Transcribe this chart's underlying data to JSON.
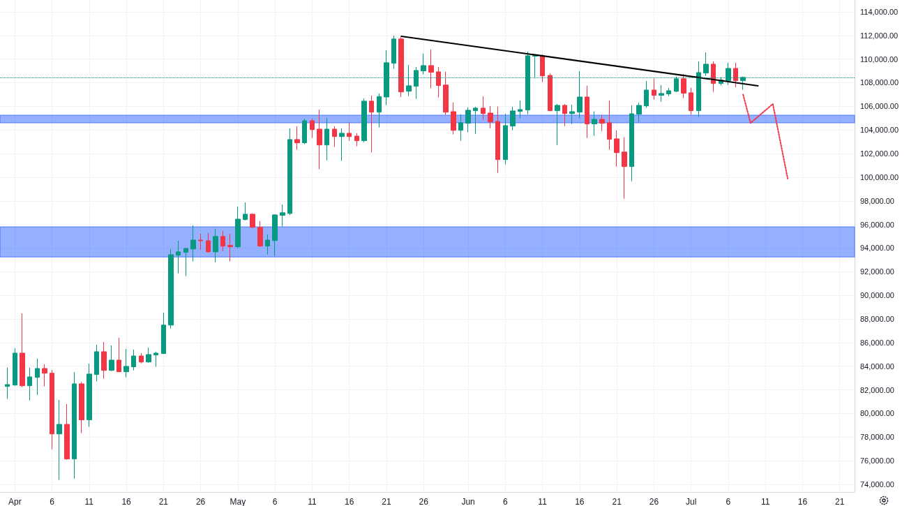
{
  "chart_data": {
    "type": "candlestick",
    "x": [
      "--03-31",
      "--04-01",
      "--04-02",
      "--04-03",
      "--04-04",
      "--04-05",
      "--04-06",
      "--04-07",
      "--04-08",
      "--04-09",
      "--04-10",
      "--04-11",
      "--04-12",
      "--04-13",
      "--04-14",
      "--04-15",
      "--04-16",
      "--04-17",
      "--04-18",
      "--04-19",
      "--04-20",
      "--04-21",
      "--04-22",
      "--04-23",
      "--04-24",
      "--04-25",
      "--04-26",
      "--04-27",
      "--04-28",
      "--04-29",
      "--04-30",
      "--05-01",
      "--05-02",
      "--05-03",
      "--05-04",
      "--05-05",
      "--05-06",
      "--05-07",
      "--05-08",
      "--05-09",
      "--05-10",
      "--05-11",
      "--05-12",
      "--05-13",
      "--05-14",
      "--05-15",
      "--05-16",
      "--05-17",
      "--05-18",
      "--05-19",
      "--05-20",
      "--05-21",
      "--05-22",
      "--05-23",
      "--05-24",
      "--05-25",
      "--05-26",
      "--05-27",
      "--05-28",
      "--05-29",
      "--05-30",
      "--05-31",
      "--06-01",
      "--06-02",
      "--06-03",
      "--06-04",
      "--06-05",
      "--06-06",
      "--06-07",
      "--06-08",
      "--06-09",
      "--06-10",
      "--06-11",
      "--06-12",
      "--06-13",
      "--06-14",
      "--06-15",
      "--06-16",
      "--06-17",
      "--06-18",
      "--06-19",
      "--06-20",
      "--06-21",
      "--06-22",
      "--06-23",
      "--06-24",
      "--06-25",
      "--06-26",
      "--06-27",
      "--06-28",
      "--06-29",
      "--06-30",
      "--07-01",
      "--07-02",
      "--07-03",
      "--07-04",
      "--07-05",
      "--07-06",
      "--07-07",
      "--07-08"
    ],
    "ohlc": [
      [
        82290,
        83890,
        81230,
        82450
      ],
      [
        82410,
        85520,
        82350,
        85110
      ],
      [
        85110,
        88480,
        82230,
        82350
      ],
      [
        82350,
        83870,
        81110,
        83100
      ],
      [
        83060,
        84640,
        81580,
        83810
      ],
      [
        83810,
        84170,
        82290,
        83410
      ],
      [
        83410,
        83690,
        76970,
        78270
      ],
      [
        78270,
        81150,
        74380,
        79080
      ],
      [
        79080,
        80800,
        76090,
        76150
      ],
      [
        76150,
        83510,
        74490,
        82510
      ],
      [
        82510,
        82670,
        78330,
        79460
      ],
      [
        79460,
        84220,
        78870,
        83340
      ],
      [
        83300,
        85820,
        82710,
        85230
      ],
      [
        85230,
        86050,
        82940,
        83650
      ],
      [
        83650,
        85760,
        83590,
        84520
      ],
      [
        84520,
        86410,
        83500,
        83530
      ],
      [
        83530,
        85460,
        83060,
        83990
      ],
      [
        83950,
        85410,
        83650,
        84870
      ],
      [
        84870,
        85110,
        84240,
        84360
      ],
      [
        84360,
        85580,
        84300,
        84990
      ],
      [
        84950,
        85230,
        83950,
        85110
      ],
      [
        85070,
        88540,
        85050,
        87480
      ],
      [
        87480,
        93910,
        87200,
        93440
      ],
      [
        93400,
        94620,
        91860,
        93680
      ],
      [
        93640,
        94000,
        91630,
        93970
      ],
      [
        93930,
        95920,
        92870,
        94680
      ],
      [
        94680,
        95210,
        93870,
        94620
      ],
      [
        94620,
        95270,
        93640,
        93680
      ],
      [
        93680,
        95630,
        92790,
        94980
      ],
      [
        94980,
        95450,
        93740,
        94170
      ],
      [
        94230,
        95210,
        92870,
        94110
      ],
      [
        94110,
        97520,
        94000,
        96450
      ],
      [
        96410,
        97870,
        96350,
        96870
      ],
      [
        96870,
        96950,
        95700,
        95760
      ],
      [
        95760,
        96280,
        94110,
        94170
      ],
      [
        94170,
        95150,
        93460,
        94680
      ],
      [
        94640,
        96870,
        93340,
        96810
      ],
      [
        96770,
        97690,
        95820,
        96990
      ],
      [
        96930,
        104130,
        96800,
        103190
      ],
      [
        103190,
        104310,
        102320,
        102910
      ],
      [
        102910,
        104960,
        102790,
        104780
      ],
      [
        104780,
        104960,
        103320,
        104030
      ],
      [
        104070,
        105730,
        100670,
        102730
      ],
      [
        102730,
        105020,
        101430,
        104070
      ],
      [
        104070,
        104310,
        102560,
        103440
      ],
      [
        103440,
        104130,
        101380,
        103720
      ],
      [
        103720,
        104610,
        103090,
        103440
      ],
      [
        103480,
        103720,
        102620,
        103090
      ],
      [
        103090,
        106670,
        102950,
        106440
      ],
      [
        106440,
        106910,
        102080,
        105510
      ],
      [
        105510,
        107090,
        104210,
        106830
      ],
      [
        106790,
        110750,
        106100,
        109690
      ],
      [
        109650,
        111990,
        109170,
        111700
      ],
      [
        111700,
        111870,
        106790,
        107220
      ],
      [
        107280,
        109510,
        106870,
        107740
      ],
      [
        107700,
        109330,
        106630,
        109040
      ],
      [
        109000,
        110460,
        108700,
        109450
      ],
      [
        109450,
        110810,
        107520,
        108880
      ],
      [
        108920,
        109330,
        106750,
        107760
      ],
      [
        107800,
        108920,
        105270,
        105510
      ],
      [
        105550,
        106320,
        103620,
        103970
      ],
      [
        103970,
        105330,
        103090,
        104610
      ],
      [
        104570,
        105920,
        103800,
        105670
      ],
      [
        105630,
        105970,
        103680,
        105850
      ],
      [
        105850,
        106850,
        104860,
        105390
      ],
      [
        105430,
        106020,
        104150,
        104680
      ],
      [
        104720,
        105970,
        100370,
        101490
      ],
      [
        101490,
        105370,
        101080,
        104370
      ],
      [
        104330,
        105970,
        103970,
        105610
      ],
      [
        105570,
        106500,
        104980,
        105730
      ],
      [
        105690,
        110630,
        105330,
        110280
      ],
      [
        110240,
        110380,
        108350,
        110340
      ],
      [
        110280,
        110400,
        108050,
        108580
      ],
      [
        108620,
        108800,
        105600,
        105630
      ],
      [
        105630,
        106200,
        102730,
        106080
      ],
      [
        106080,
        106200,
        104330,
        105390
      ],
      [
        105390,
        106140,
        104510,
        105550
      ],
      [
        105510,
        108980,
        104980,
        106790
      ],
      [
        106790,
        107740,
        103320,
        104510
      ],
      [
        104510,
        105570,
        103500,
        104900
      ],
      [
        104900,
        105260,
        103910,
        104570
      ],
      [
        104610,
        106500,
        102320,
        103210
      ],
      [
        103250,
        103960,
        100900,
        102080
      ],
      [
        102130,
        103380,
        98180,
        100900
      ],
      [
        100900,
        106080,
        99660,
        105370
      ],
      [
        105330,
        106320,
        104680,
        106080
      ],
      [
        106040,
        108150,
        105870,
        107380
      ],
      [
        107380,
        108330,
        106570,
        106930
      ],
      [
        106930,
        107800,
        106400,
        107090
      ],
      [
        107050,
        107560,
        106870,
        107320
      ],
      [
        107270,
        108510,
        107210,
        108330
      ],
      [
        108330,
        108740,
        106690,
        107110
      ],
      [
        107150,
        107560,
        105300,
        105630
      ],
      [
        105630,
        109810,
        105100,
        108860
      ],
      [
        108820,
        110570,
        108580,
        109570
      ],
      [
        109570,
        109810,
        107220,
        107930
      ],
      [
        107930,
        108450,
        107760,
        108230
      ],
      [
        108170,
        109690,
        107810,
        109210
      ],
      [
        109210,
        109690,
        107620,
        108170
      ],
      [
        108170,
        108510,
        107400,
        108450
      ]
    ],
    "colors": [
      "#089981",
      "#089981",
      "#f23645",
      "#089981",
      "#089981",
      "#f23645",
      "#f23645",
      "#089981",
      "#f23645",
      "#089981",
      "#f23645",
      "#089981",
      "#089981",
      "#f23645",
      "#089981",
      "#f23645",
      "#089981",
      "#089981",
      "#f23645",
      "#089981",
      "#089981",
      "#089981",
      "#089981",
      "#089981",
      "#089981",
      "#089981",
      "#f23645",
      "#f23645",
      "#089981",
      "#f23645",
      "#f23645",
      "#089981",
      "#089981",
      "#f23645",
      "#f23645",
      "#089981",
      "#089981",
      "#089981",
      "#089981",
      "#f23645",
      "#089981",
      "#f23645",
      "#f23645",
      "#089981",
      "#f23645",
      "#089981",
      "#f23645",
      "#f23645",
      "#089981",
      "#f23645",
      "#089981",
      "#089981",
      "#089981",
      "#f23645",
      "#089981",
      "#089981",
      "#089981",
      "#f23645",
      "#f23645",
      "#f23645",
      "#f23645",
      "#089981",
      "#089981",
      "#089981",
      "#f23645",
      "#f23645",
      "#f23645",
      "#089981",
      "#089981",
      "#089981",
      "#089981",
      "#089981",
      "#f23645",
      "#f23645",
      "#089981",
      "#f23645",
      "#089981",
      "#089981",
      "#f23645",
      "#089981",
      "#f23645",
      "#f23645",
      "#f23645",
      "#f23645",
      "#089981",
      "#089981",
      "#089981",
      "#f23645",
      "#089981",
      "#089981",
      "#089981",
      "#f23645",
      "#f23645",
      "#089981",
      "#089981",
      "#f23645",
      "#089981",
      "#089981",
      "#f23645",
      "#089981"
    ],
    "series": [
      {
        "type": "line",
        "color": "#000000",
        "line_style": "solid",
        "x": [
          "--05-23",
          "--07-10"
        ],
        "values": [
          111930,
          107740
        ]
      },
      {
        "type": "line",
        "color": "#f23645",
        "line_style": "dotted",
        "x": [
          "--07-08",
          "--07-09",
          "--07-12",
          "--07-14"
        ],
        "values": [
          106990,
          104590,
          106200,
          99880
        ]
      }
    ],
    "marker": "none",
    "bands": [
      {
        "axis": "y",
        "from": 93250,
        "to": 95800,
        "color": "#2962ff"
      },
      {
        "axis": "y",
        "from": 104600,
        "to": 105250,
        "color": "#2962ff"
      }
    ],
    "ref_lines": [
      {
        "axis": "y",
        "value": 108450,
        "color": "#089981",
        "line_style": "dotted"
      }
    ],
    "xlim": [
      "--03-30",
      "--07-23"
    ],
    "xticks": [
      {
        "value": "--04-01",
        "label": "Apr"
      },
      {
        "value": "--04-06",
        "label": "6"
      },
      {
        "value": "--04-11",
        "label": "11"
      },
      {
        "value": "--04-16",
        "label": "16"
      },
      {
        "value": "--04-21",
        "label": "21"
      },
      {
        "value": "--04-26",
        "label": "26"
      },
      {
        "value": "--05-01",
        "label": "May"
      },
      {
        "value": "--05-06",
        "label": "6"
      },
      {
        "value": "--05-11",
        "label": "11"
      },
      {
        "value": "--05-16",
        "label": "16"
      },
      {
        "value": "--05-21",
        "label": "21"
      },
      {
        "value": "--05-26",
        "label": "26"
      },
      {
        "value": "--06-01",
        "label": "Jun"
      },
      {
        "value": "--06-06",
        "label": "6"
      },
      {
        "value": "--06-11",
        "label": "11"
      },
      {
        "value": "--06-16",
        "label": "16"
      },
      {
        "value": "--06-21",
        "label": "21"
      },
      {
        "value": "--06-26",
        "label": "26"
      },
      {
        "value": "--07-01",
        "label": "Jul"
      },
      {
        "value": "--07-06",
        "label": "6"
      },
      {
        "value": "--07-11",
        "label": "11"
      },
      {
        "value": "--07-16",
        "label": "16"
      },
      {
        "value": "--07-21",
        "label": "21"
      }
    ],
    "ylim": [
      73350,
      115000
    ],
    "yticks": [
      {
        "value": 74000,
        "label": "74,000.00"
      },
      {
        "value": 76000,
        "label": "76,000.00"
      },
      {
        "value": 78000,
        "label": "78,000.00"
      },
      {
        "value": 80000,
        "label": "80,000.00"
      },
      {
        "value": 82000,
        "label": "82,000.00"
      },
      {
        "value": 84000,
        "label": "84,000.00"
      },
      {
        "value": 86000,
        "label": "86,000.00"
      },
      {
        "value": 88000,
        "label": "88,000.00"
      },
      {
        "value": 90000,
        "label": "90,000.00"
      },
      {
        "value": 92000,
        "label": "92,000.00"
      },
      {
        "value": 94000,
        "label": "94,000.00"
      },
      {
        "value": 96000,
        "label": "96,000.00"
      },
      {
        "value": 98000,
        "label": "98,000.00"
      },
      {
        "value": 100000,
        "label": "100,000.00"
      },
      {
        "value": 102000,
        "label": "102,000.00"
      },
      {
        "value": 104000,
        "label": "104,000.00"
      },
      {
        "value": 106000,
        "label": "106,000.00"
      },
      {
        "value": 108000,
        "label": "108,000.00"
      },
      {
        "value": 110000,
        "label": "110,000.00"
      },
      {
        "value": 112000,
        "label": "112,000.00"
      },
      {
        "value": 114000,
        "label": "114,000.00"
      }
    ],
    "grid": true
  }
}
